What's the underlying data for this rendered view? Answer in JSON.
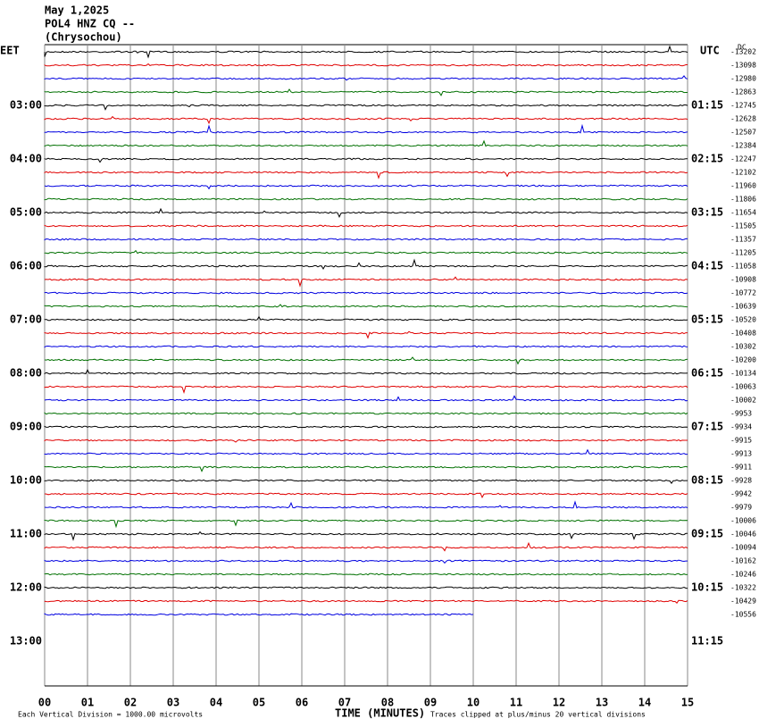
{
  "chart_data": {
    "type": "helicorder",
    "title_lines": [
      "May 1,2025",
      "POL4 HNZ CQ --",
      "(Chrysochou)"
    ],
    "left_zone": "EET",
    "right_zone": "UTC",
    "dc_header": "DC",
    "left_hours": [
      "03:00",
      "04:00",
      "05:00",
      "06:00",
      "07:00",
      "08:00",
      "09:00",
      "10:00",
      "11:00",
      "12:00",
      "13:00"
    ],
    "right_hours": [
      "01:15",
      "02:15",
      "03:15",
      "04:15",
      "05:15",
      "06:15",
      "07:15",
      "08:15",
      "09:15",
      "10:15",
      "11:15"
    ],
    "dc_offsets": [
      -13202,
      -13098,
      -12980,
      -12863,
      -12745,
      -12628,
      -12507,
      -12384,
      -12247,
      -12102,
      -11960,
      -11806,
      -11654,
      -11505,
      -11357,
      -11205,
      -11058,
      -10908,
      -10772,
      -10639,
      -10520,
      -10408,
      -10302,
      -10200,
      -10134,
      -10063,
      -10002,
      -9953,
      -9934,
      -9915,
      -9913,
      -9911,
      -9928,
      -9942,
      -9979,
      -10006,
      -10046,
      -10094,
      -10162,
      -10246,
      -10322,
      -10429,
      -10556
    ],
    "trace_colors": [
      "#000000",
      "#e00000",
      "#0000e0",
      "#007000"
    ],
    "last_trace_end": 10,
    "xlim": [
      0,
      15
    ],
    "xticks": [
      {
        "value": 0,
        "label": "00"
      },
      {
        "value": 1,
        "label": "01"
      },
      {
        "value": 2,
        "label": "02"
      },
      {
        "value": 3,
        "label": "03"
      },
      {
        "value": 4,
        "label": "04"
      },
      {
        "value": 5,
        "label": "05"
      },
      {
        "value": 6,
        "label": "06"
      },
      {
        "value": 7,
        "label": "07"
      },
      {
        "value": 8,
        "label": "08"
      },
      {
        "value": 9,
        "label": "09"
      },
      10,
      11,
      12,
      13,
      14,
      15
    ],
    "xlabel": "TIME (MINUTES)",
    "footer_left": "Each Vertical Division = 1000.00 microvolts",
    "footer_right": "Traces clipped at plus/minus 20 vertical divisions",
    "grid": true
  }
}
